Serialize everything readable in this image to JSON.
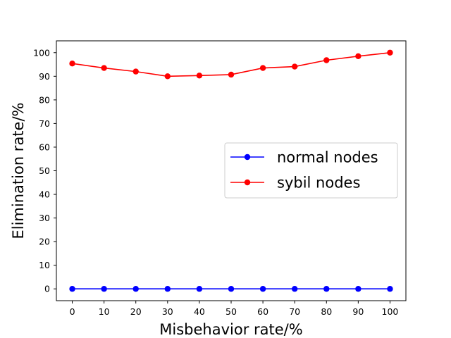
{
  "chart_data": {
    "type": "line",
    "title": "",
    "xlabel": "Misbehavior rate/%",
    "ylabel": "Elimination rate/%",
    "x": [
      0,
      10,
      20,
      30,
      40,
      50,
      60,
      70,
      80,
      90,
      100
    ],
    "xlim": [
      -5,
      105
    ],
    "ylim": [
      -5,
      105
    ],
    "xticks": [
      0,
      10,
      20,
      30,
      40,
      50,
      60,
      70,
      80,
      90,
      100
    ],
    "yticks": [
      0,
      10,
      20,
      30,
      40,
      50,
      60,
      70,
      80,
      90,
      100
    ],
    "grid": false,
    "legend_position": "center-right",
    "series": [
      {
        "name": "normal nodes",
        "color": "#0000ff",
        "marker": "circle",
        "values": [
          0,
          0,
          0,
          0,
          0,
          0,
          0,
          0,
          0,
          0,
          0
        ]
      },
      {
        "name": "sybil nodes",
        "color": "#ff0000",
        "marker": "circle",
        "values": [
          95.4,
          93.5,
          92.0,
          90.0,
          90.3,
          90.7,
          93.5,
          94.1,
          96.8,
          98.5,
          100.0
        ]
      }
    ]
  }
}
